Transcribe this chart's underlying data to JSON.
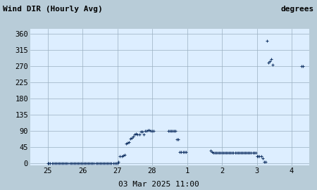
{
  "title_left": "Wind DIR (Hourly Avg)",
  "title_right": "degrees",
  "xlabel": "03 Mar 2025 11:00",
  "xlim": [
    24.5,
    32.5
  ],
  "ylim": [
    -5,
    375
  ],
  "yticks": [
    0,
    45,
    90,
    135,
    180,
    225,
    270,
    315,
    360
  ],
  "xtick_positions": [
    25,
    26,
    27,
    28,
    29,
    30,
    31,
    32
  ],
  "xtick_labels": [
    "25",
    "26",
    "27",
    "28",
    "1",
    "2",
    "3",
    "4"
  ],
  "bg_color": "#d8e8f0",
  "plot_bg_color": "#ddeeff",
  "header_bg": "#b8ccd8",
  "point_color": "#1a3a6a",
  "marker": "+",
  "marker_size": 3,
  "data_x": [
    25.0,
    25.04,
    25.08,
    25.13,
    25.17,
    25.21,
    25.25,
    25.29,
    25.33,
    25.38,
    25.42,
    25.46,
    25.5,
    25.54,
    25.58,
    25.63,
    25.67,
    25.71,
    25.75,
    25.79,
    25.83,
    25.88,
    25.92,
    25.96,
    26.0,
    26.04,
    26.08,
    26.13,
    26.17,
    26.21,
    26.25,
    26.29,
    26.33,
    26.38,
    26.42,
    26.46,
    26.5,
    26.54,
    26.58,
    26.63,
    26.67,
    26.71,
    26.75,
    26.79,
    26.83,
    26.88,
    26.92,
    26.96,
    27.0,
    27.04,
    27.08,
    27.13,
    27.17,
    27.21,
    27.25,
    27.29,
    27.33,
    27.38,
    27.42,
    27.46,
    27.5,
    27.54,
    27.58,
    27.63,
    27.67,
    27.71,
    27.75,
    27.79,
    27.83,
    27.88,
    27.92,
    27.96,
    28.0,
    28.04,
    28.46,
    28.5,
    28.54,
    28.58,
    28.63,
    28.67,
    28.71,
    28.75,
    28.79,
    28.83,
    28.88,
    28.92,
    28.96,
    29.67,
    29.71,
    29.75,
    29.79,
    29.83,
    29.88,
    29.92,
    29.96,
    30.0,
    30.04,
    30.08,
    30.13,
    30.17,
    30.21,
    30.25,
    30.29,
    30.33,
    30.38,
    30.42,
    30.46,
    30.5,
    30.54,
    30.58,
    30.63,
    30.67,
    30.71,
    30.75,
    30.79,
    30.83,
    30.88,
    30.92,
    30.96,
    31.0,
    31.04,
    31.08,
    31.13,
    31.17,
    31.21,
    31.25,
    31.29,
    31.33,
    31.38,
    31.42,
    31.46,
    32.29,
    32.33
  ],
  "data_y": [
    0,
    0,
    0,
    0,
    0,
    0,
    0,
    0,
    0,
    0,
    0,
    0,
    0,
    0,
    0,
    0,
    0,
    0,
    0,
    0,
    0,
    0,
    0,
    0,
    0,
    0,
    0,
    0,
    0,
    0,
    0,
    0,
    0,
    0,
    0,
    0,
    0,
    0,
    0,
    0,
    0,
    0,
    0,
    0,
    0,
    0,
    0,
    0,
    0,
    5,
    20,
    20,
    22,
    24,
    55,
    58,
    60,
    70,
    72,
    75,
    80,
    82,
    80,
    80,
    88,
    88,
    80,
    90,
    90,
    92,
    92,
    90,
    90,
    90,
    90,
    90,
    90,
    90,
    90,
    90,
    68,
    68,
    32,
    32,
    32,
    32,
    32,
    35,
    32,
    30,
    30,
    30,
    30,
    30,
    30,
    30,
    30,
    30,
    30,
    30,
    30,
    30,
    30,
    30,
    30,
    30,
    30,
    30,
    30,
    30,
    30,
    30,
    30,
    30,
    30,
    30,
    30,
    30,
    30,
    20,
    20,
    20,
    20,
    15,
    5,
    5,
    340,
    280,
    285,
    290,
    275,
    270,
    270
  ]
}
